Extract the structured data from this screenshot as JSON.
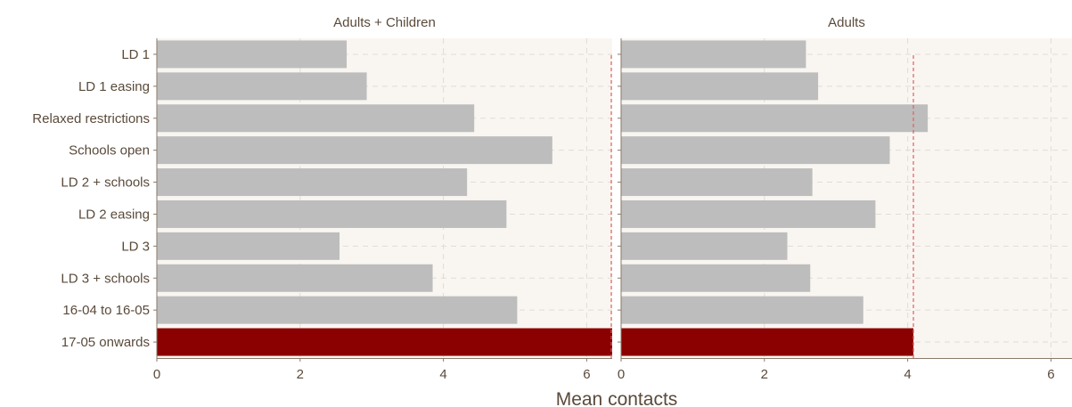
{
  "chart_data": {
    "type": "bar",
    "orientation": "horizontal",
    "xlabel": "Mean contacts",
    "categories": [
      "LD 1",
      "LD 1 easing",
      "Relaxed restrictions",
      "Schools open",
      "LD 2 + schools",
      "LD 2 easing",
      "LD 3",
      "LD 3 + schools",
      "16-04 to 16-05",
      "17-05 onwards"
    ],
    "highlight_category": "17-05 onwards",
    "colors": {
      "bar": "#bdbdbd",
      "highlight": "#8b0000",
      "reference_line": "#e06060",
      "panel_bg": "#f9f6f2",
      "text": "#5a4a3a"
    },
    "xlim": [
      0,
      6.5
    ],
    "xticks": [
      "0",
      "2",
      "4",
      "6"
    ],
    "grid": true,
    "panels": [
      {
        "title": "Adults + Children",
        "values": [
          2.65,
          2.93,
          4.43,
          5.52,
          4.33,
          4.88,
          2.55,
          3.85,
          5.03,
          6.45
        ],
        "reference_value": 6.35
      },
      {
        "title": "Adults",
        "values": [
          2.58,
          2.75,
          4.28,
          3.75,
          2.67,
          3.55,
          2.32,
          2.64,
          3.38,
          4.08
        ],
        "reference_value": 4.08
      }
    ]
  }
}
